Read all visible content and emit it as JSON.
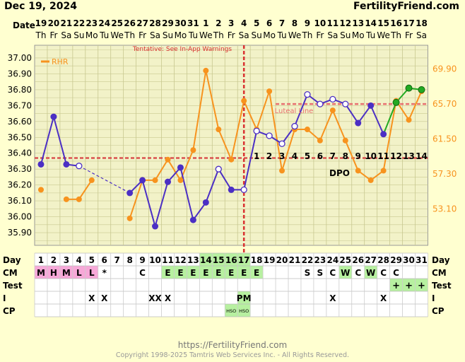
{
  "header": {
    "title": "Dec 19, 2024",
    "site": "FertilityFriend.com",
    "date_label": "Date"
  },
  "footer": {
    "url": "https://FertilityFriend.com",
    "copyright": "Copyright 1998-2025 Tamtris Web Services Inc. - All Rights Reserved."
  },
  "colors": {
    "background": "#ffffd0",
    "temp_line": "#4b2fc4",
    "rhr_line": "#f7931e",
    "coverline": "#d9534f",
    "ovulation_line": "#d93030",
    "luteal_line": "#e87070",
    "green_line": "#22aa22",
    "cm_pink": "#f7a8d8",
    "cm_green": "#b7f0a0",
    "grid": "#c8c890"
  },
  "chart_data": {
    "type": "line",
    "tentative_note": "Tentative: See In-App Warnings",
    "legend": "RHR",
    "luteal_label": "Luteal Line",
    "dpo_label": "DPO",
    "dates": [
      "19",
      "20",
      "21",
      "22",
      "23",
      "24",
      "25",
      "26",
      "27",
      "28",
      "29",
      "30",
      "31",
      "1",
      "2",
      "3",
      "4",
      "5",
      "6",
      "7",
      "8",
      "9",
      "10",
      "11",
      "12",
      "13",
      "14",
      "15",
      "16",
      "17",
      "18"
    ],
    "weekdays": [
      "Th",
      "Fr",
      "Sa",
      "Su",
      "Mo",
      "Tu",
      "We",
      "Th",
      "Fr",
      "Sa",
      "Su",
      "Mo",
      "Tu",
      "We",
      "Th",
      "Fr",
      "Sa",
      "Su",
      "Mo",
      "Tu",
      "We",
      "Th",
      "Fr",
      "Sa",
      "Su",
      "Mo",
      "Tu",
      "We",
      "Th",
      "Fr",
      "Sa"
    ],
    "cycle_days": [
      1,
      2,
      3,
      4,
      5,
      6,
      7,
      8,
      9,
      10,
      11,
      12,
      13,
      14,
      15,
      16,
      17,
      18,
      19,
      20,
      21,
      22,
      23,
      24,
      25,
      26,
      27,
      28,
      29,
      30,
      31
    ],
    "y_left_ticks": [
      "37.00",
      "36.90",
      "36.80",
      "36.70",
      "36.60",
      "36.50",
      "36.40",
      "36.30",
      "36.20",
      "36.10",
      "36.00",
      "35.90"
    ],
    "y_right_ticks": [
      "69.90",
      "65.70",
      "61.50",
      "57.30",
      "53.10"
    ],
    "ylim": [
      35.82,
      37.08
    ],
    "temperature": [
      36.33,
      36.63,
      36.33,
      36.32,
      null,
      null,
      null,
      36.15,
      36.23,
      35.94,
      36.22,
      36.31,
      35.98,
      36.09,
      36.3,
      36.17,
      36.17,
      36.54,
      36.51,
      36.46,
      36.57,
      36.77,
      36.71,
      36.74,
      36.71,
      36.59,
      36.7,
      36.52,
      36.72,
      36.81,
      36.8
    ],
    "temperature_open_days": [
      4,
      15,
      17,
      18,
      19,
      20,
      21,
      22,
      23,
      24,
      25
    ],
    "temperature_dashed_segment": [
      4,
      8
    ],
    "temperature_green_days": [
      29,
      30,
      31
    ],
    "rhr_scaled": [
      36.17,
      null,
      36.11,
      36.11,
      36.23,
      null,
      null,
      35.99,
      36.23,
      36.23,
      36.36,
      36.23,
      36.42,
      36.92,
      36.55,
      36.36,
      36.73,
      36.55,
      36.79,
      36.29,
      36.55,
      36.55,
      36.48,
      36.67,
      36.48,
      36.29,
      36.23,
      36.29,
      36.73,
      36.61,
      36.79
    ],
    "coverline": 36.37,
    "luteal_level": 36.71,
    "luteal_start_day": 20,
    "ovulation_day": 17,
    "dpo": [
      "1",
      "2",
      "3",
      "4",
      "5",
      "6",
      "7",
      "8",
      "9",
      "10",
      "11",
      "12",
      "13",
      "14"
    ],
    "dpo_start_day": 18
  },
  "rows": {
    "labels": [
      "Day",
      "CM",
      "Test",
      "I",
      "CP"
    ],
    "cm": {
      "1": "M",
      "2": "H",
      "3": "M",
      "4": "L",
      "5": "L",
      "6": "*",
      "9": "C",
      "11": "E",
      "12": "E",
      "13": "E",
      "14": "E",
      "15": "E",
      "16": "E",
      "17": "E",
      "18": "E",
      "22": "S",
      "23": "S",
      "24": "C",
      "25": "W",
      "26": "C",
      "27": "W",
      "28": "C",
      "29": "C"
    },
    "cm_pink_days": [
      1,
      2,
      3,
      4,
      5
    ],
    "cm_green_days": [
      11,
      12,
      13,
      14,
      15,
      16,
      17,
      18,
      25,
      27
    ],
    "test": {
      "29": "+",
      "30": "+",
      "31": "+"
    },
    "intercourse": {
      "5": "X",
      "6": "X",
      "10": "XX",
      "11": "X",
      "17": "PM",
      "24": "X",
      "28": "X"
    },
    "cp": {
      "16": "HSO",
      "17": "HSO"
    },
    "green_day_cells": [
      14,
      15,
      16,
      17
    ]
  }
}
